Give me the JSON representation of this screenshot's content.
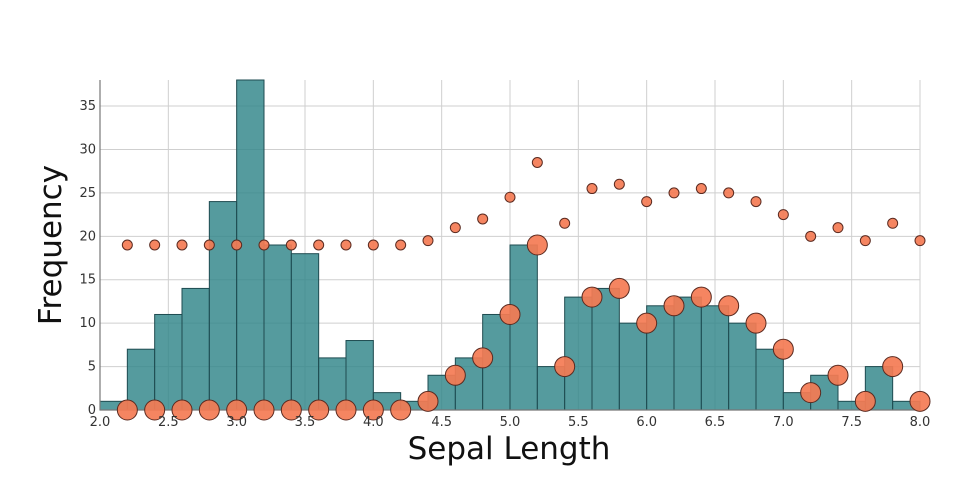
{
  "chart_data": {
    "type": "bar",
    "title": "",
    "xlabel": "Sepal Length",
    "ylabel": "Frequency",
    "xlim": [
      2.0,
      8.0
    ],
    "ylim": [
      0,
      38
    ],
    "grid": true,
    "colors": {
      "bar_fill": "#2f8589",
      "bar_stroke": "#1e4b50",
      "point_fill": "#f47b54",
      "point_stroke": "#5a2a20",
      "grid": "#cfcfcf",
      "axis": "#777777"
    },
    "x_ticks": [
      "2.0",
      "2.5",
      "3.0",
      "3.5",
      "4.0",
      "4.5",
      "5.0",
      "5.5",
      "6.0",
      "6.5",
      "7.0",
      "7.5",
      "8.0"
    ],
    "y_ticks": [
      "0",
      "5",
      "10",
      "15",
      "20",
      "25",
      "30",
      "35"
    ],
    "histogram": {
      "bin_width": 0.2,
      "bins": [
        {
          "x": 2.0,
          "count": 1
        },
        {
          "x": 2.2,
          "count": 7
        },
        {
          "x": 2.4,
          "count": 11
        },
        {
          "x": 2.6,
          "count": 14
        },
        {
          "x": 2.8,
          "count": 24
        },
        {
          "x": 3.0,
          "count": 38
        },
        {
          "x": 3.2,
          "count": 19
        },
        {
          "x": 3.4,
          "count": 18
        },
        {
          "x": 3.6,
          "count": 6
        },
        {
          "x": 3.8,
          "count": 8
        },
        {
          "x": 4.0,
          "count": 2
        },
        {
          "x": 4.2,
          "count": 1
        },
        {
          "x": 4.4,
          "count": 4
        },
        {
          "x": 4.6,
          "count": 6
        },
        {
          "x": 4.8,
          "count": 11
        },
        {
          "x": 5.0,
          "count": 19
        },
        {
          "x": 5.2,
          "count": 5
        },
        {
          "x": 5.4,
          "count": 13
        },
        {
          "x": 5.6,
          "count": 14
        },
        {
          "x": 5.8,
          "count": 10
        },
        {
          "x": 6.0,
          "count": 12
        },
        {
          "x": 6.2,
          "count": 13
        },
        {
          "x": 6.4,
          "count": 12
        },
        {
          "x": 6.6,
          "count": 10
        },
        {
          "x": 6.8,
          "count": 7
        },
        {
          "x": 7.0,
          "count": 2
        },
        {
          "x": 7.2,
          "count": 4
        },
        {
          "x": 7.4,
          "count": 1
        },
        {
          "x": 7.6,
          "count": 5
        },
        {
          "x": 7.8,
          "count": 1
        }
      ]
    },
    "scatter_upper": [
      {
        "x": 2.2,
        "y": 19
      },
      {
        "x": 2.4,
        "y": 19
      },
      {
        "x": 2.6,
        "y": 19
      },
      {
        "x": 2.8,
        "y": 19
      },
      {
        "x": 3.0,
        "y": 19
      },
      {
        "x": 3.2,
        "y": 19
      },
      {
        "x": 3.4,
        "y": 19
      },
      {
        "x": 3.6,
        "y": 19
      },
      {
        "x": 3.8,
        "y": 19
      },
      {
        "x": 4.0,
        "y": 19
      },
      {
        "x": 4.2,
        "y": 19
      },
      {
        "x": 4.4,
        "y": 19.5
      },
      {
        "x": 4.6,
        "y": 21
      },
      {
        "x": 4.8,
        "y": 22
      },
      {
        "x": 5.0,
        "y": 24.5
      },
      {
        "x": 5.2,
        "y": 28.5
      },
      {
        "x": 5.4,
        "y": 21.5
      },
      {
        "x": 5.6,
        "y": 25.5
      },
      {
        "x": 5.8,
        "y": 26
      },
      {
        "x": 6.0,
        "y": 24
      },
      {
        "x": 6.2,
        "y": 25
      },
      {
        "x": 6.4,
        "y": 25.5
      },
      {
        "x": 6.6,
        "y": 25
      },
      {
        "x": 6.8,
        "y": 24
      },
      {
        "x": 7.0,
        "y": 22.5
      },
      {
        "x": 7.2,
        "y": 20
      },
      {
        "x": 7.4,
        "y": 21
      },
      {
        "x": 7.6,
        "y": 19.5
      },
      {
        "x": 7.8,
        "y": 21.5
      },
      {
        "x": 8.0,
        "y": 19.5
      }
    ],
    "scatter_lower": [
      {
        "x": 2.2,
        "y": 0
      },
      {
        "x": 2.4,
        "y": 0
      },
      {
        "x": 2.6,
        "y": 0
      },
      {
        "x": 2.8,
        "y": 0
      },
      {
        "x": 3.0,
        "y": 0
      },
      {
        "x": 3.2,
        "y": 0
      },
      {
        "x": 3.4,
        "y": 0
      },
      {
        "x": 3.6,
        "y": 0
      },
      {
        "x": 3.8,
        "y": 0
      },
      {
        "x": 4.0,
        "y": 0
      },
      {
        "x": 4.2,
        "y": 0
      },
      {
        "x": 4.4,
        "y": 1
      },
      {
        "x": 4.6,
        "y": 4
      },
      {
        "x": 4.8,
        "y": 6
      },
      {
        "x": 5.0,
        "y": 11
      },
      {
        "x": 5.2,
        "y": 19
      },
      {
        "x": 5.4,
        "y": 5
      },
      {
        "x": 5.6,
        "y": 13
      },
      {
        "x": 5.8,
        "y": 14
      },
      {
        "x": 6.0,
        "y": 10
      },
      {
        "x": 6.2,
        "y": 12
      },
      {
        "x": 6.4,
        "y": 13
      },
      {
        "x": 6.6,
        "y": 12
      },
      {
        "x": 6.8,
        "y": 10
      },
      {
        "x": 7.0,
        "y": 7
      },
      {
        "x": 7.2,
        "y": 2
      },
      {
        "x": 7.4,
        "y": 4
      },
      {
        "x": 7.6,
        "y": 1
      },
      {
        "x": 7.8,
        "y": 5
      },
      {
        "x": 8.0,
        "y": 1
      }
    ]
  }
}
